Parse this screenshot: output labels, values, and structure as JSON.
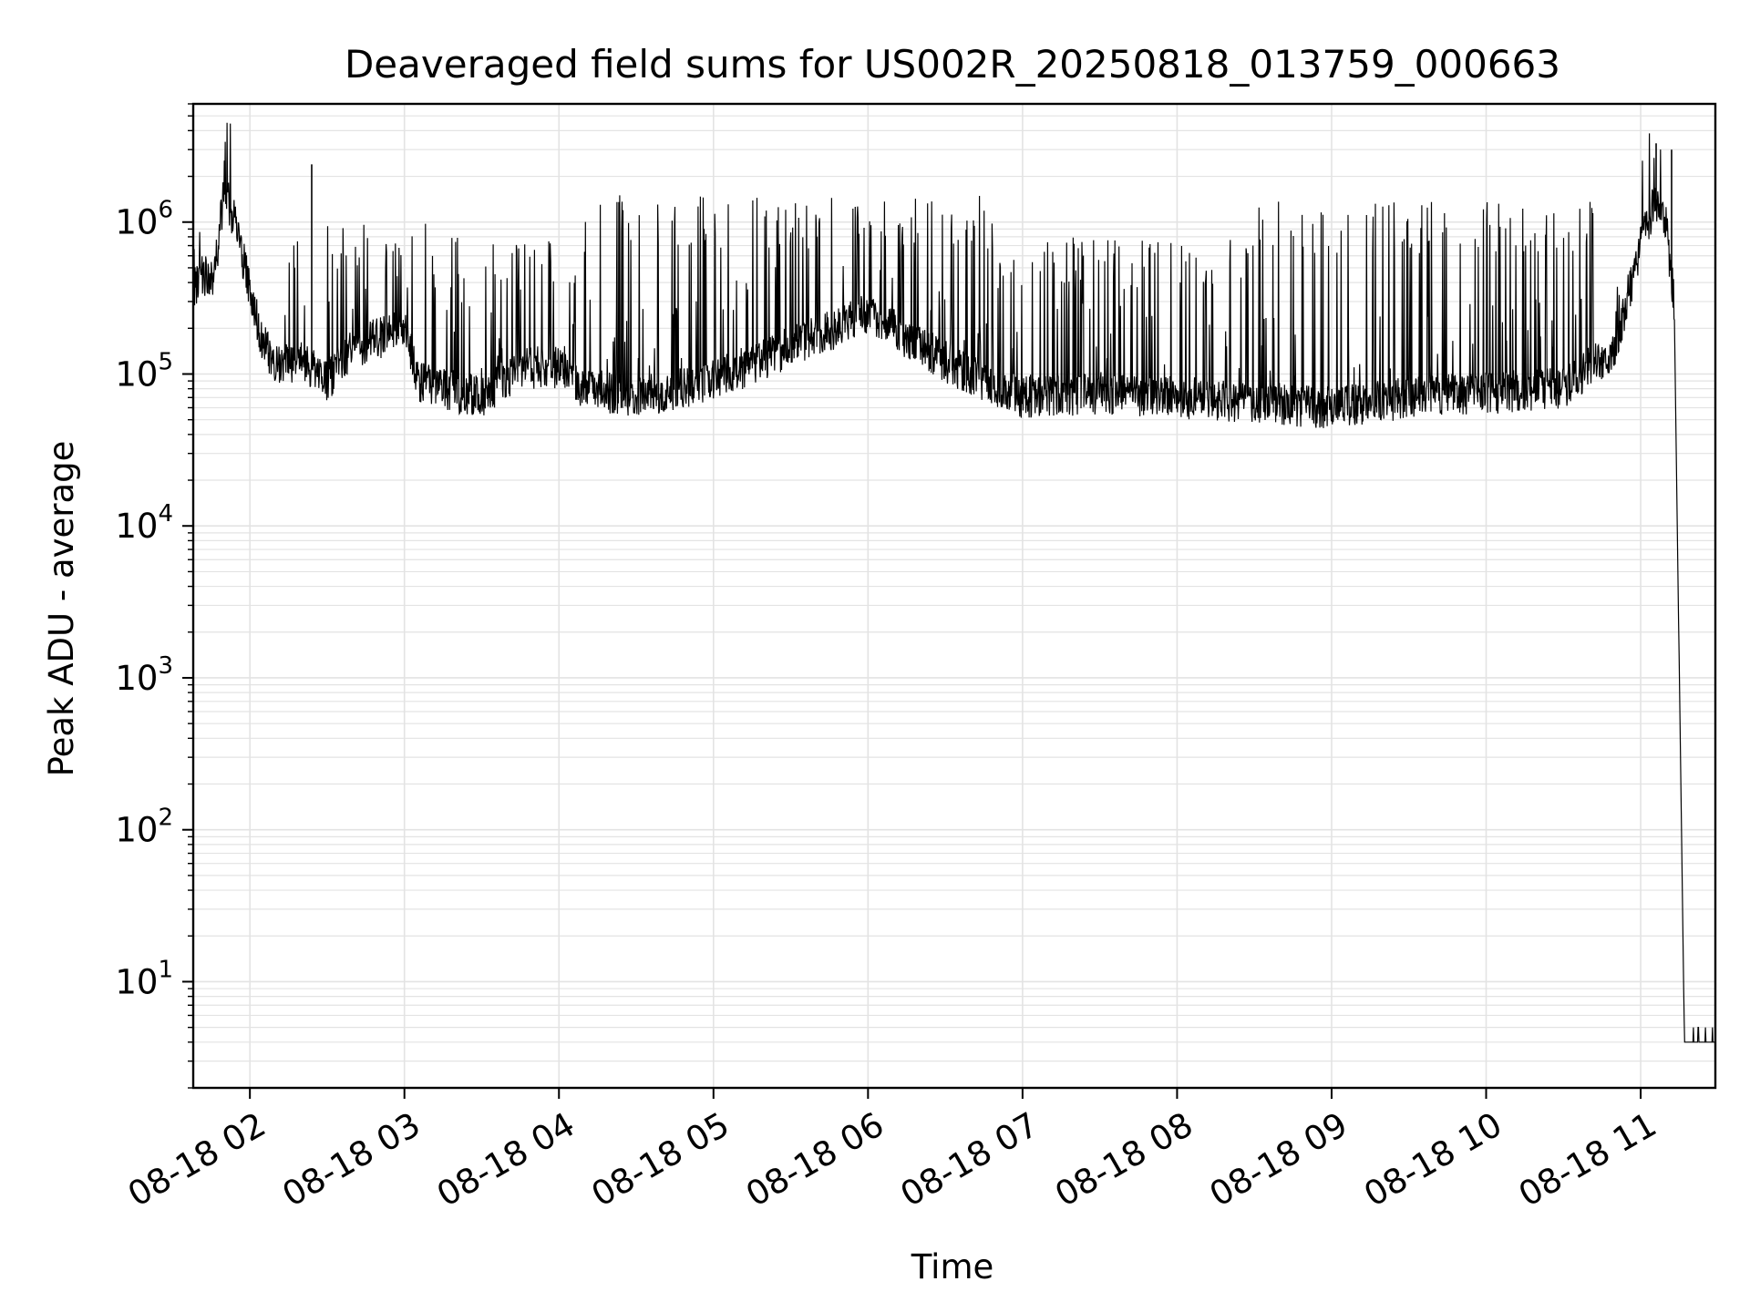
{
  "chart_data": {
    "type": "line",
    "title": "Deaveraged field sums for US002R_20250818_013759_000663",
    "xlabel": "Time",
    "ylabel": "Peak ADU - average",
    "yscale": "log",
    "grid": true,
    "legend": "none",
    "xlim": [
      "08-18 01:38",
      "08-18 11:29"
    ],
    "ylim": [
      2,
      6000000
    ],
    "x_ticks": [
      {
        "value": "08-18 02:00",
        "label": "08-18 02"
      },
      {
        "value": "08-18 03:00",
        "label": "08-18 03"
      },
      {
        "value": "08-18 04:00",
        "label": "08-18 04"
      },
      {
        "value": "08-18 05:00",
        "label": "08-18 05"
      },
      {
        "value": "08-18 06:00",
        "label": "08-18 06"
      },
      {
        "value": "08-18 07:00",
        "label": "08-18 07"
      },
      {
        "value": "08-18 08:00",
        "label": "08-18 08"
      },
      {
        "value": "08-18 09:00",
        "label": "08-18 09"
      },
      {
        "value": "08-18 10:00",
        "label": "08-18 10"
      },
      {
        "value": "08-18 11:00",
        "label": "08-18 11"
      }
    ],
    "y_ticks": [
      {
        "value": 10,
        "base": "10",
        "exp": "1"
      },
      {
        "value": 100,
        "base": "10",
        "exp": "2"
      },
      {
        "value": 1000,
        "base": "10",
        "exp": "3"
      },
      {
        "value": 10000,
        "base": "10",
        "exp": "4"
      },
      {
        "value": 100000,
        "base": "10",
        "exp": "5"
      },
      {
        "value": 1000000,
        "base": "10",
        "exp": "6"
      }
    ],
    "colors": {
      "line": "#000000",
      "grid": "#e3e3e3",
      "axes": "#000000"
    },
    "series": [
      {
        "points": [
          {
            "x": "08-18 01:38",
            "y": 350000
          },
          {
            "x": "08-18 01:42",
            "y": 450000
          },
          {
            "x": "08-18 01:46",
            "y": 420000
          },
          {
            "x": "08-18 01:50",
            "y": 1600000
          },
          {
            "x": "08-18 01:55",
            "y": 900000
          },
          {
            "x": "08-18 02:00",
            "y": 350000
          },
          {
            "x": "08-18 02:05",
            "y": 160000
          },
          {
            "x": "08-18 02:10",
            "y": 110000
          },
          {
            "x": "08-18 02:20",
            "y": 120000
          },
          {
            "x": "08-18 02:30",
            "y": 90000
          },
          {
            "x": "08-18 02:40",
            "y": 150000
          },
          {
            "x": "08-18 02:50",
            "y": 170000
          },
          {
            "x": "08-18 03:00",
            "y": 220000
          },
          {
            "x": "08-18 03:05",
            "y": 90000
          },
          {
            "x": "08-18 03:15",
            "y": 80000
          },
          {
            "x": "08-18 03:30",
            "y": 70000
          },
          {
            "x": "08-18 03:45",
            "y": 110000
          },
          {
            "x": "08-18 04:00",
            "y": 110000
          },
          {
            "x": "08-18 04:10",
            "y": 80000
          },
          {
            "x": "08-18 04:30",
            "y": 70000
          },
          {
            "x": "08-18 05:00",
            "y": 90000
          },
          {
            "x": "08-18 05:30",
            "y": 150000
          },
          {
            "x": "08-18 06:00",
            "y": 250000
          },
          {
            "x": "08-18 06:30",
            "y": 120000
          },
          {
            "x": "08-18 07:00",
            "y": 70000
          },
          {
            "x": "08-18 07:30",
            "y": 75000
          },
          {
            "x": "08-18 08:00",
            "y": 70000
          },
          {
            "x": "08-18 08:30",
            "y": 65000
          },
          {
            "x": "08-18 09:00",
            "y": 60000
          },
          {
            "x": "08-18 09:30",
            "y": 70000
          },
          {
            "x": "08-18 10:00",
            "y": 75000
          },
          {
            "x": "08-18 10:30",
            "y": 80000
          },
          {
            "x": "08-18 10:50",
            "y": 150000
          },
          {
            "x": "08-18 11:00",
            "y": 700000
          },
          {
            "x": "08-18 11:05",
            "y": 1300000
          },
          {
            "x": "08-18 11:10",
            "y": 900000
          },
          {
            "x": "08-18 11:13",
            "y": 300000
          },
          {
            "x": "08-18 11:17",
            "y": 4
          },
          {
            "x": "08-18 11:29",
            "y": 4
          }
        ],
        "peak_range": [
          {
            "from": "08-18 02:15",
            "to": "08-18 03:10",
            "y": 1100000
          },
          {
            "from": "08-18 03:10",
            "to": "08-18 04:10",
            "y": 800000
          },
          {
            "from": "08-18 04:10",
            "to": "08-18 06:50",
            "y": 1500000
          },
          {
            "from": "08-18 06:50",
            "to": "08-18 08:30",
            "y": 800000
          },
          {
            "from": "08-18 08:30",
            "to": "08-18 10:45",
            "y": 1400000
          }
        ],
        "spikes": [
          {
            "x": "08-18 02:24",
            "y": 2400000
          },
          {
            "x": "08-18 11:06",
            "y": 3300000
          },
          {
            "x": "08-18 11:12",
            "y": 3000000
          }
        ]
      }
    ]
  }
}
